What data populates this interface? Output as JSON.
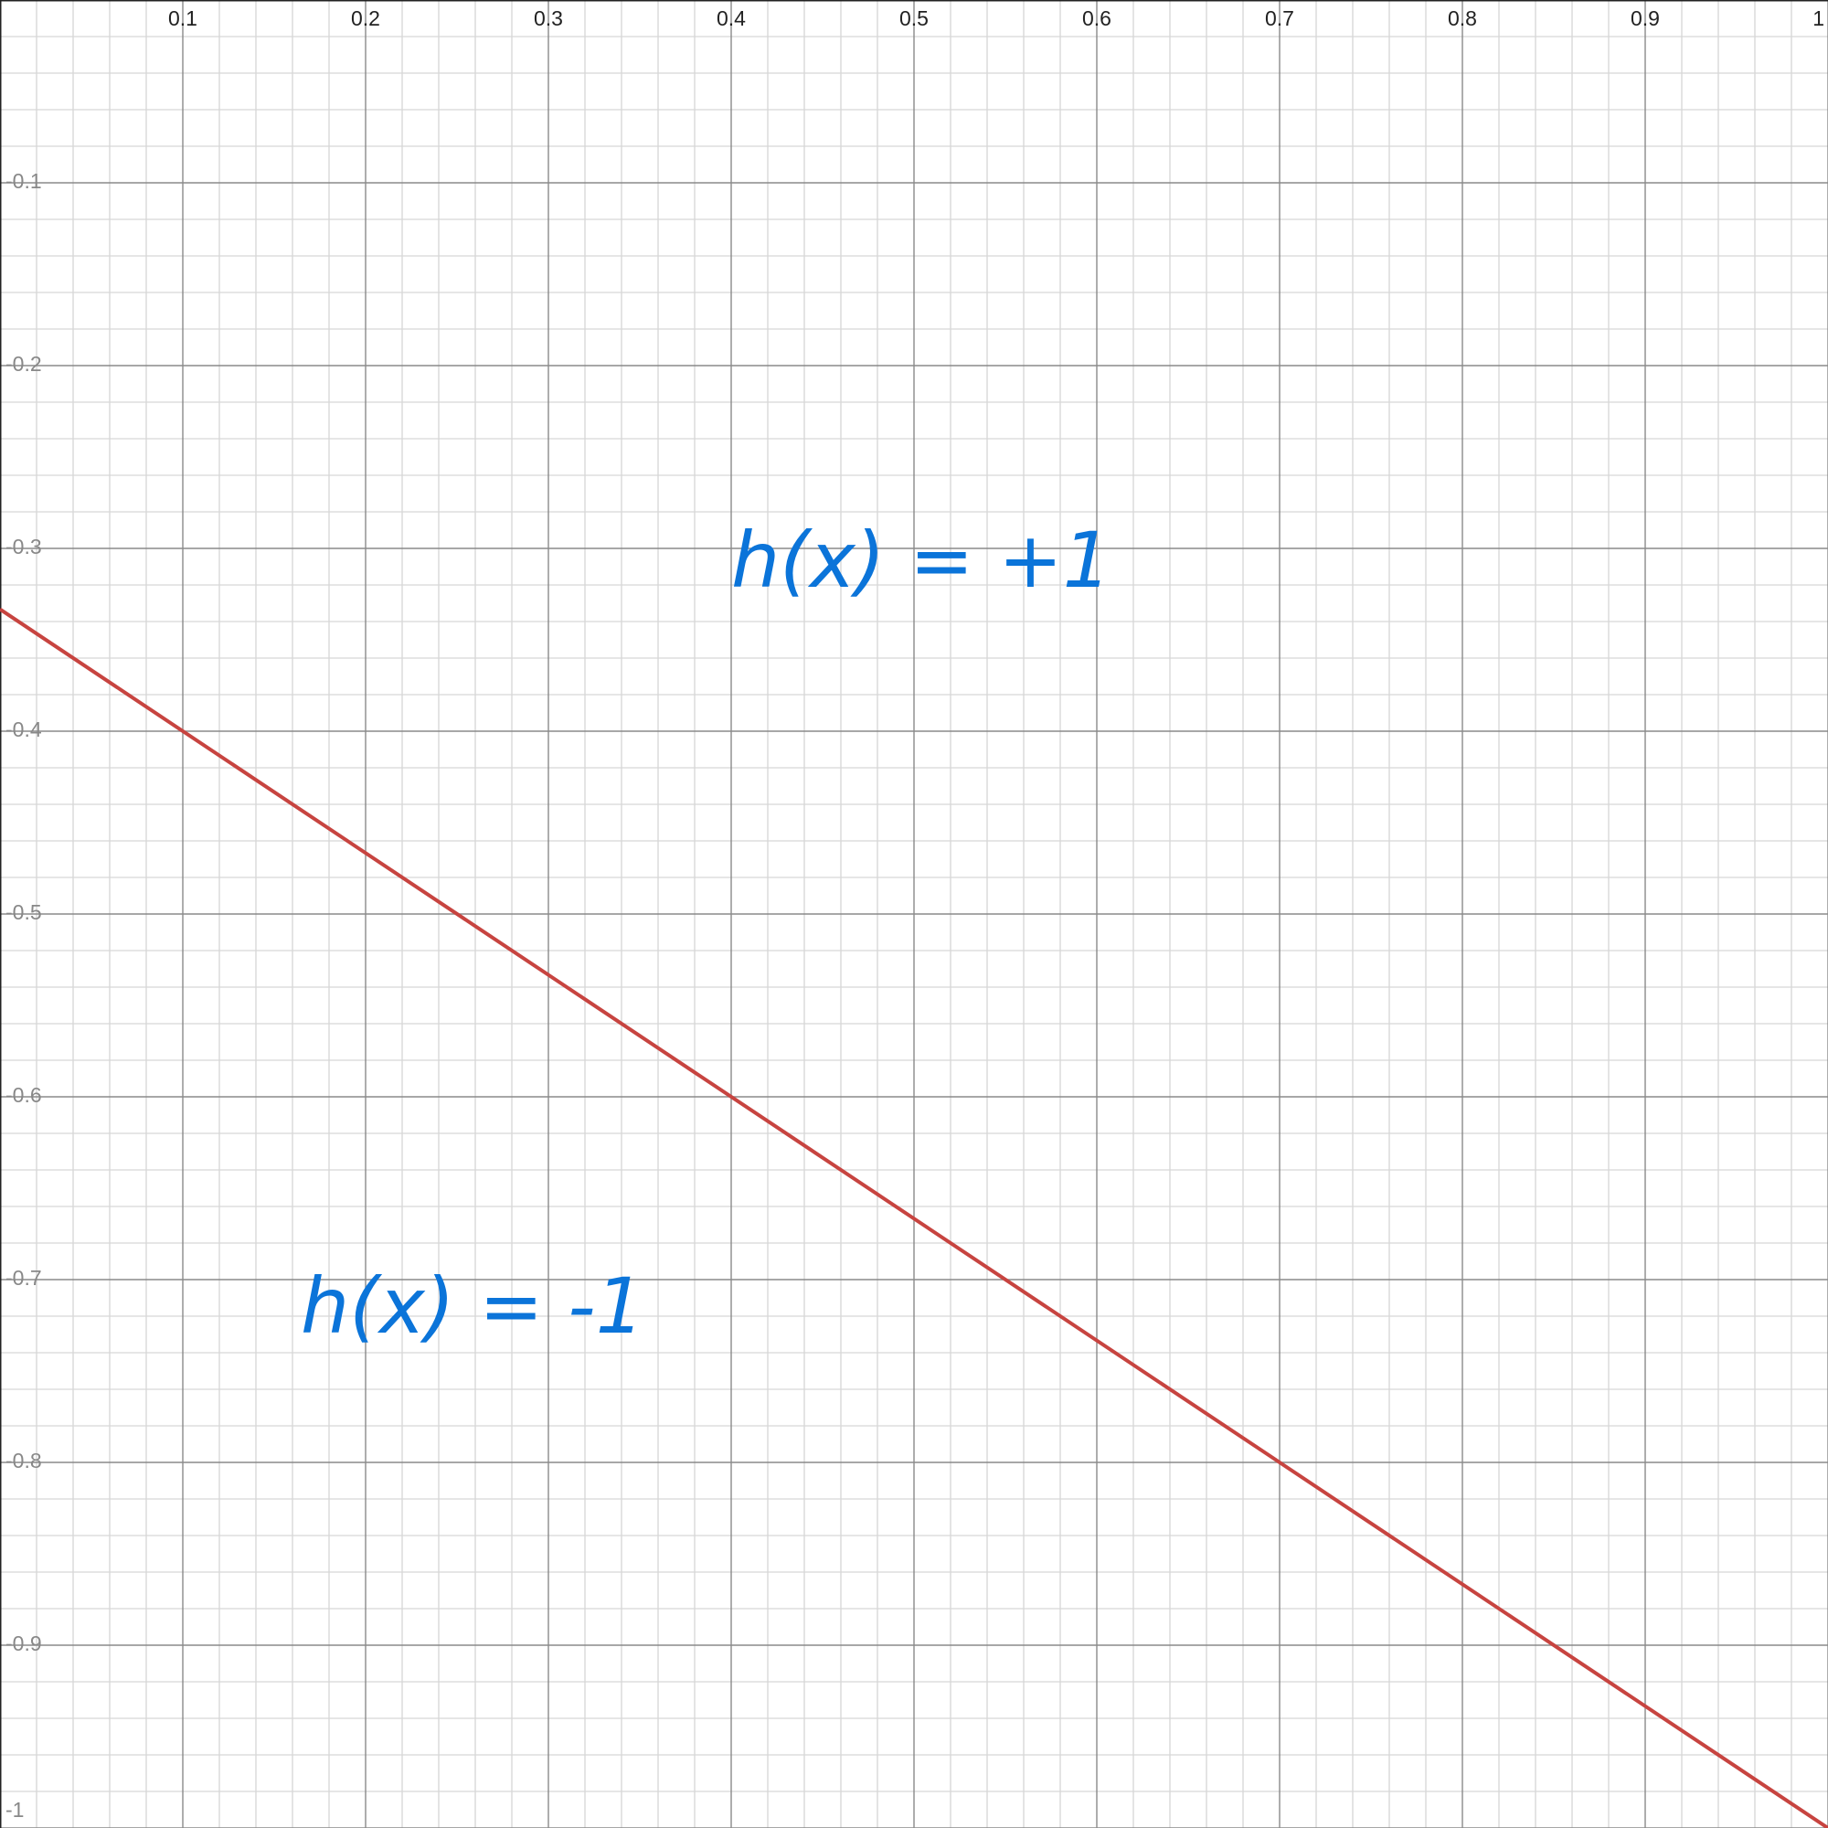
{
  "chart_data": {
    "type": "line",
    "x": [
      0,
      1
    ],
    "series": [
      {
        "color": "#c74440",
        "values": [
          -0.3333,
          -1
        ]
      }
    ],
    "xlim": [
      0,
      1
    ],
    "ylim": [
      -1,
      0
    ],
    "xticks": [
      0.1,
      0.2,
      0.3,
      0.4,
      0.5,
      0.6,
      0.7,
      0.8,
      0.9,
      1
    ],
    "yticks": [
      -0.1,
      -0.2,
      -0.3,
      -0.4,
      -0.5,
      -0.6,
      -0.7,
      -0.8,
      -0.9,
      -1
    ],
    "grid": true,
    "annotations": [
      "h(x) = +1",
      "h(x) = -1"
    ]
  }
}
